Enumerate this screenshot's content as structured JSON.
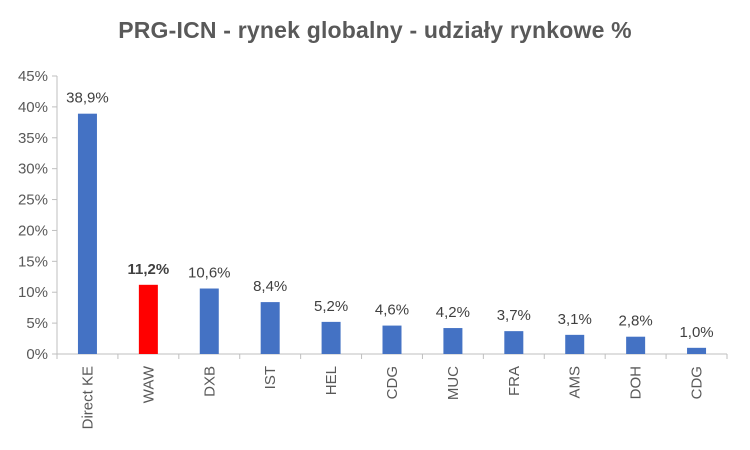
{
  "chart_data": {
    "type": "bar",
    "title": "PRG-ICN  - rynek globalny - udziały rynkowe %",
    "xlabel": "",
    "ylabel": "",
    "categories": [
      "Direct KE",
      "WAW",
      "DXB",
      "IST",
      "HEL",
      "CDG",
      "MUC",
      "FRA",
      "AMS",
      "DOH",
      "CDG"
    ],
    "values": [
      38.9,
      11.2,
      10.6,
      8.4,
      5.2,
      4.6,
      4.2,
      3.7,
      3.1,
      2.8,
      1.0
    ],
    "data_labels": [
      "38,9%",
      "11,2%",
      "10,6%",
      "8,4%",
      "5,2%",
      "4,6%",
      "4,2%",
      "3,7%",
      "3,1%",
      "2,8%",
      "1,0%"
    ],
    "y_ticks": [
      0,
      5,
      10,
      15,
      20,
      25,
      30,
      35,
      40,
      45
    ],
    "y_tick_labels": [
      "0%",
      "5%",
      "10%",
      "15%",
      "20%",
      "25%",
      "30%",
      "35%",
      "40%",
      "45%"
    ],
    "ylim": [
      0,
      45
    ],
    "grid": false,
    "legend": "none",
    "bar_color": "#4472C4",
    "highlight_category_index": 1,
    "highlight_color": "#FF0000"
  }
}
